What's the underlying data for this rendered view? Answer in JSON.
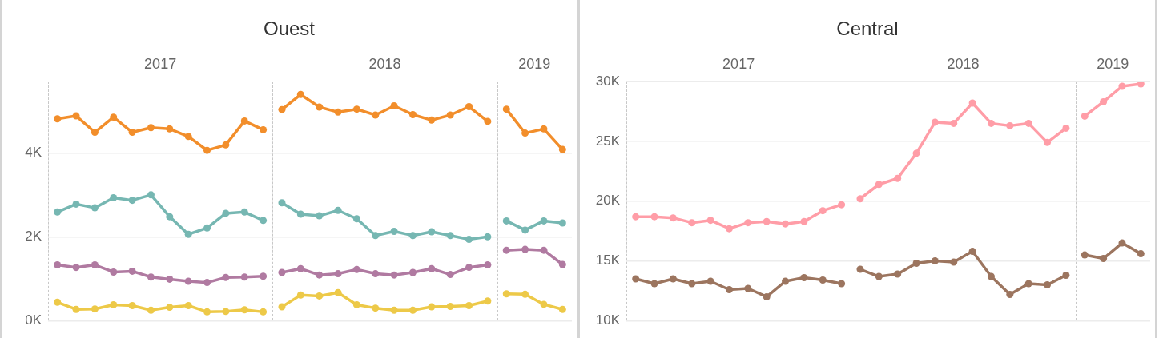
{
  "chart_data": [
    {
      "type": "line",
      "title": "Ouest",
      "annotations": [
        "2017",
        "2018",
        "2019"
      ],
      "categories": [
        null,
        null,
        null,
        null,
        null,
        null,
        null,
        null,
        null,
        null,
        null,
        null,
        null,
        null,
        null,
        null,
        null,
        null,
        null,
        null,
        null,
        null,
        null,
        null,
        null,
        null,
        null,
        null
      ],
      "ylim": [
        0,
        5700
      ],
      "yticks": [
        {
          "value": 0,
          "label": "0K"
        },
        {
          "value": 2000,
          "label": "2K"
        },
        {
          "value": 4000,
          "label": "4K"
        }
      ],
      "grid": "y",
      "marker": "circle",
      "series": [
        {
          "color": "#f28e2b",
          "values": [
            4810,
            4880,
            4490,
            4850,
            4490,
            4600,
            4570,
            4390,
            4060,
            4190,
            4760,
            4550,
            null,
            null,
            null,
            null,
            null,
            null,
            null,
            null,
            null,
            null,
            null,
            null,
            null,
            null,
            null,
            null
          ]
        },
        {
          "color": "#76b7b2",
          "values": [
            2590,
            2780,
            2690,
            2930,
            2870,
            3000,
            2480,
            2060,
            2210,
            2560,
            2590,
            2390,
            null,
            null,
            null,
            null,
            null,
            null,
            null,
            null,
            null,
            null,
            null,
            null,
            null,
            null,
            null,
            null
          ]
        },
        {
          "color": "#b07aa1",
          "values": [
            1330,
            1270,
            1330,
            1160,
            1180,
            1040,
            990,
            940,
            910,
            1030,
            1040,
            1060,
            null,
            null,
            null,
            null,
            null,
            null,
            null,
            null,
            null,
            null,
            null,
            null,
            null,
            null,
            null,
            null
          ]
        },
        {
          "color": "#edc948",
          "values": [
            440,
            270,
            280,
            380,
            360,
            250,
            320,
            360,
            210,
            220,
            260,
            210,
            null,
            null,
            null,
            null,
            null,
            null,
            null,
            null,
            null,
            null,
            null,
            null,
            null,
            null,
            null,
            null
          ]
        },
        {
          "color": "#f28e2b",
          "values": [
            null,
            null,
            null,
            null,
            null,
            null,
            null,
            null,
            null,
            null,
            null,
            null,
            5030,
            5390,
            5090,
            4970,
            5040,
            4900,
            5120,
            4910,
            4780,
            4900,
            5100,
            4750,
            null,
            null,
            null,
            null
          ]
        },
        {
          "color": "#76b7b2",
          "values": [
            null,
            null,
            null,
            null,
            null,
            null,
            null,
            null,
            null,
            null,
            null,
            null,
            2810,
            2540,
            2500,
            2630,
            2430,
            2030,
            2130,
            2030,
            2120,
            2030,
            1940,
            2000,
            null,
            null,
            null,
            null
          ]
        },
        {
          "color": "#b07aa1",
          "values": [
            null,
            null,
            null,
            null,
            null,
            null,
            null,
            null,
            null,
            null,
            null,
            null,
            1150,
            1240,
            1090,
            1120,
            1220,
            1120,
            1090,
            1150,
            1240,
            1100,
            1270,
            1330,
            null,
            null,
            null,
            null
          ]
        },
        {
          "color": "#edc948",
          "values": [
            null,
            null,
            null,
            null,
            null,
            null,
            null,
            null,
            null,
            null,
            null,
            null,
            330,
            610,
            590,
            670,
            380,
            300,
            250,
            250,
            330,
            340,
            360,
            470,
            null,
            null,
            null,
            null
          ]
        },
        {
          "color": "#f28e2b",
          "values": [
            null,
            null,
            null,
            null,
            null,
            null,
            null,
            null,
            null,
            null,
            null,
            null,
            null,
            null,
            null,
            null,
            null,
            null,
            null,
            null,
            null,
            null,
            null,
            null,
            5040,
            4470,
            4570,
            4080
          ]
        },
        {
          "color": "#76b7b2",
          "values": [
            null,
            null,
            null,
            null,
            null,
            null,
            null,
            null,
            null,
            null,
            null,
            null,
            null,
            null,
            null,
            null,
            null,
            null,
            null,
            null,
            null,
            null,
            null,
            null,
            2380,
            2160,
            2380,
            2330
          ]
        },
        {
          "color": "#b07aa1",
          "values": [
            null,
            null,
            null,
            null,
            null,
            null,
            null,
            null,
            null,
            null,
            null,
            null,
            null,
            null,
            null,
            null,
            null,
            null,
            null,
            null,
            null,
            null,
            null,
            null,
            1680,
            1700,
            1680,
            1340
          ]
        },
        {
          "color": "#edc948",
          "values": [
            null,
            null,
            null,
            null,
            null,
            null,
            null,
            null,
            null,
            null,
            null,
            null,
            null,
            null,
            null,
            null,
            null,
            null,
            null,
            null,
            null,
            null,
            null,
            null,
            640,
            630,
            390,
            270
          ]
        }
      ]
    },
    {
      "type": "line",
      "title": "Central",
      "annotations": [
        "2017",
        "2018",
        "2019"
      ],
      "categories": [
        null,
        null,
        null,
        null,
        null,
        null,
        null,
        null,
        null,
        null,
        null,
        null,
        null,
        null,
        null,
        null,
        null,
        null,
        null,
        null,
        null,
        null,
        null,
        null,
        null,
        null,
        null,
        null
      ],
      "ylim": [
        10000,
        30000
      ],
      "yticks": [
        {
          "value": 10000,
          "label": "10K"
        },
        {
          "value": 15000,
          "label": "15K"
        },
        {
          "value": 20000,
          "label": "20K"
        },
        {
          "value": 25000,
          "label": "25K"
        },
        {
          "value": 30000,
          "label": "30K"
        }
      ],
      "grid": "y",
      "marker": "circle",
      "series": [
        {
          "color": "#ff9da7",
          "values": [
            18700,
            18700,
            18600,
            18200,
            18400,
            17700,
            18200,
            18300,
            18100,
            18300,
            19200,
            19700,
            null,
            null,
            null,
            null,
            null,
            null,
            null,
            null,
            null,
            null,
            null,
            null,
            null,
            null,
            null,
            null
          ]
        },
        {
          "color": "#9c755f",
          "values": [
            13500,
            13100,
            13500,
            13100,
            13300,
            12600,
            12700,
            12000,
            13300,
            13600,
            13400,
            13100,
            null,
            null,
            null,
            null,
            null,
            null,
            null,
            null,
            null,
            null,
            null,
            null,
            null,
            null,
            null,
            null
          ]
        },
        {
          "color": "#ff9da7",
          "values": [
            null,
            null,
            null,
            null,
            null,
            null,
            null,
            null,
            null,
            null,
            null,
            null,
            20200,
            21400,
            21900,
            24000,
            26600,
            26500,
            28200,
            26500,
            26300,
            26500,
            24900,
            26100,
            null,
            null,
            null,
            null
          ]
        },
        {
          "color": "#9c755f",
          "values": [
            null,
            null,
            null,
            null,
            null,
            null,
            null,
            null,
            null,
            null,
            null,
            null,
            14300,
            13700,
            13900,
            14800,
            15000,
            14900,
            15800,
            13700,
            12200,
            13100,
            13000,
            13800,
            null,
            null,
            null,
            null
          ]
        },
        {
          "color": "#ff9da7",
          "values": [
            null,
            null,
            null,
            null,
            null,
            null,
            null,
            null,
            null,
            null,
            null,
            null,
            null,
            null,
            null,
            null,
            null,
            null,
            null,
            null,
            null,
            null,
            null,
            null,
            27100,
            28300,
            29600,
            29800
          ]
        },
        {
          "color": "#9c755f",
          "values": [
            null,
            null,
            null,
            null,
            null,
            null,
            null,
            null,
            null,
            null,
            null,
            null,
            null,
            null,
            null,
            null,
            null,
            null,
            null,
            null,
            null,
            null,
            null,
            null,
            15500,
            15200,
            16500,
            15600
          ]
        }
      ]
    }
  ]
}
